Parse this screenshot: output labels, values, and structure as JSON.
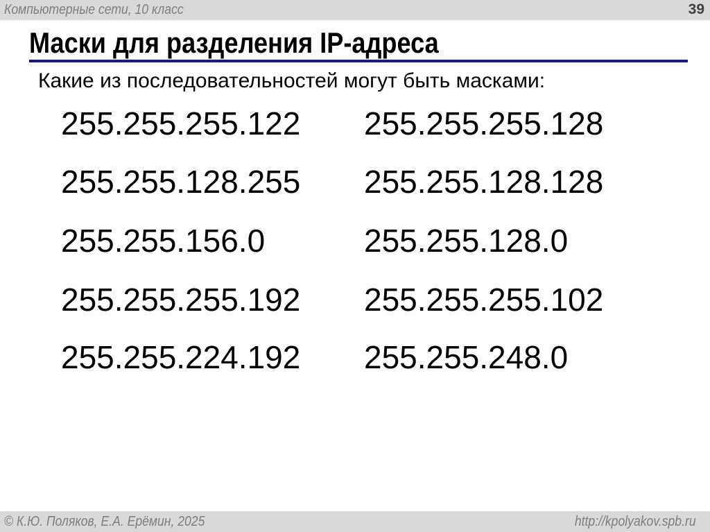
{
  "header": {
    "course": "Компьютерные сети, 10 класс",
    "page_number": "39"
  },
  "title": "Маски для разделения IP-адреса",
  "question": "Какие из последовательностей могут быть масками:",
  "masks": {
    "left": [
      "255.255.255.122",
      "255.255.128.255",
      "255.255.156.0",
      "255.255.255.192",
      "255.255.224.192"
    ],
    "right": [
      "255.255.255.128",
      "255.255.128.128",
      "255.255.128.0",
      "255.255.255.102",
      "255.255.248.0"
    ]
  },
  "footer": {
    "copyright": "© К.Ю. Поляков, Е.А. Ерёмин, 2025",
    "url": "http://kpolyakov.spb.ru"
  },
  "colors": {
    "bar": "#d9d9d9",
    "rule": "#1a1a80"
  }
}
